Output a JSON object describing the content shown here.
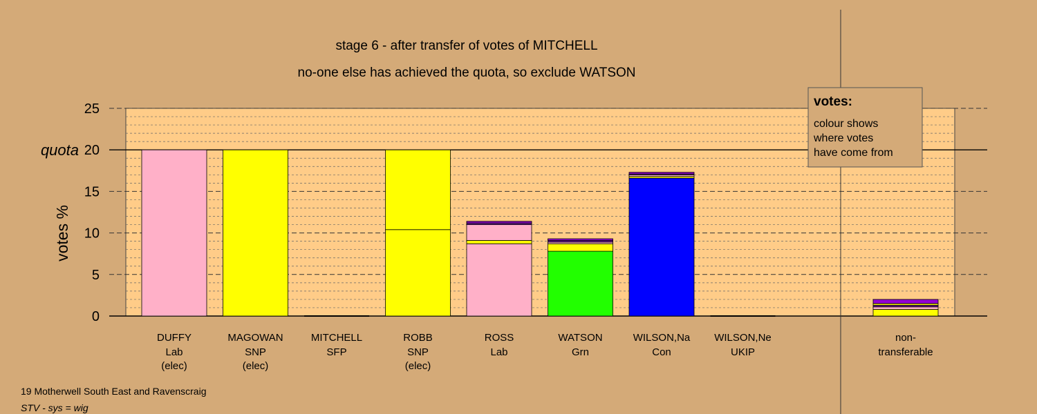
{
  "title": "stage 6 - after transfer of votes of MITCHELL",
  "subtitle": "no-one else has achieved the quota, so exclude WATSON",
  "footer": {
    "line1": "19 Motherwell South East and Ravenscraig",
    "line2": "STV - sys = wig"
  },
  "legend_box": {
    "heading": "votes:",
    "lines": [
      "colour shows",
      "where votes",
      "have come from"
    ]
  },
  "colors": {
    "background": "#d4aa78",
    "plot_area": "#ffcc88",
    "Lab": "#ffb0c8",
    "SNP": "#ffff00",
    "Grn": "#22ff00",
    "Con": "#0000ff",
    "SFP": "#6a1a8a",
    "UKIP": "#9400d3",
    "other": "#c8a0a0"
  },
  "chart_data": {
    "type": "bar",
    "stacked": true,
    "ylabel": "votes %",
    "ylim": [
      0,
      25
    ],
    "yticks": [
      0,
      5,
      10,
      15,
      20,
      25
    ],
    "quota": {
      "label": "quota",
      "value": 20
    },
    "grid": true,
    "candidates": [
      {
        "name": "DUFFY",
        "party": "Lab",
        "status": "(elec)",
        "segments": [
          {
            "from": "Lab",
            "value": 20.0
          }
        ]
      },
      {
        "name": "MAGOWAN",
        "party": "SNP",
        "status": "(elec)",
        "segments": [
          {
            "from": "SNP",
            "value": 20.0
          }
        ]
      },
      {
        "name": "MITCHELL",
        "party": "SFP",
        "status": "",
        "segments": []
      },
      {
        "name": "ROBB",
        "party": "SNP",
        "status": "(elec)",
        "segments": [
          {
            "from": "SNP",
            "value": 10.4
          },
          {
            "from": "SNP",
            "value": 9.6
          }
        ]
      },
      {
        "name": "ROSS",
        "party": "Lab",
        "status": "",
        "segments": [
          {
            "from": "Lab",
            "value": 8.7
          },
          {
            "from": "SNP",
            "value": 0.4
          },
          {
            "from": "Lab",
            "value": 1.9
          },
          {
            "from": "SFP",
            "value": 0.2
          },
          {
            "from": "UKIP",
            "value": 0.2
          }
        ]
      },
      {
        "name": "WATSON",
        "party": "Grn",
        "status": "",
        "segments": [
          {
            "from": "Grn",
            "value": 7.8
          },
          {
            "from": "SNP",
            "value": 0.9
          },
          {
            "from": "Lab",
            "value": 0.2
          },
          {
            "from": "SFP",
            "value": 0.2
          },
          {
            "from": "UKIP",
            "value": 0.2
          }
        ]
      },
      {
        "name": "WILSON,Na",
        "party": "Con",
        "status": "",
        "segments": [
          {
            "from": "Con",
            "value": 16.6
          },
          {
            "from": "SNP",
            "value": 0.2
          },
          {
            "from": "Lab",
            "value": 0.2
          },
          {
            "from": "SFP",
            "value": 0.1
          },
          {
            "from": "UKIP",
            "value": 0.2
          }
        ]
      },
      {
        "name": "WILSON,Ne",
        "party": "UKIP",
        "status": "",
        "segments": []
      }
    ],
    "nontransferable": {
      "label_line1": "non-",
      "label_line2": "transferable",
      "segments": [
        {
          "from": "SNP",
          "value": 0.8
        },
        {
          "from": "Lab",
          "value": 0.3
        },
        {
          "from": "SFP",
          "value": 0.2
        },
        {
          "from": "SNP",
          "value": 0.2
        },
        {
          "from": "UKIP",
          "value": 0.5
        }
      ]
    }
  }
}
